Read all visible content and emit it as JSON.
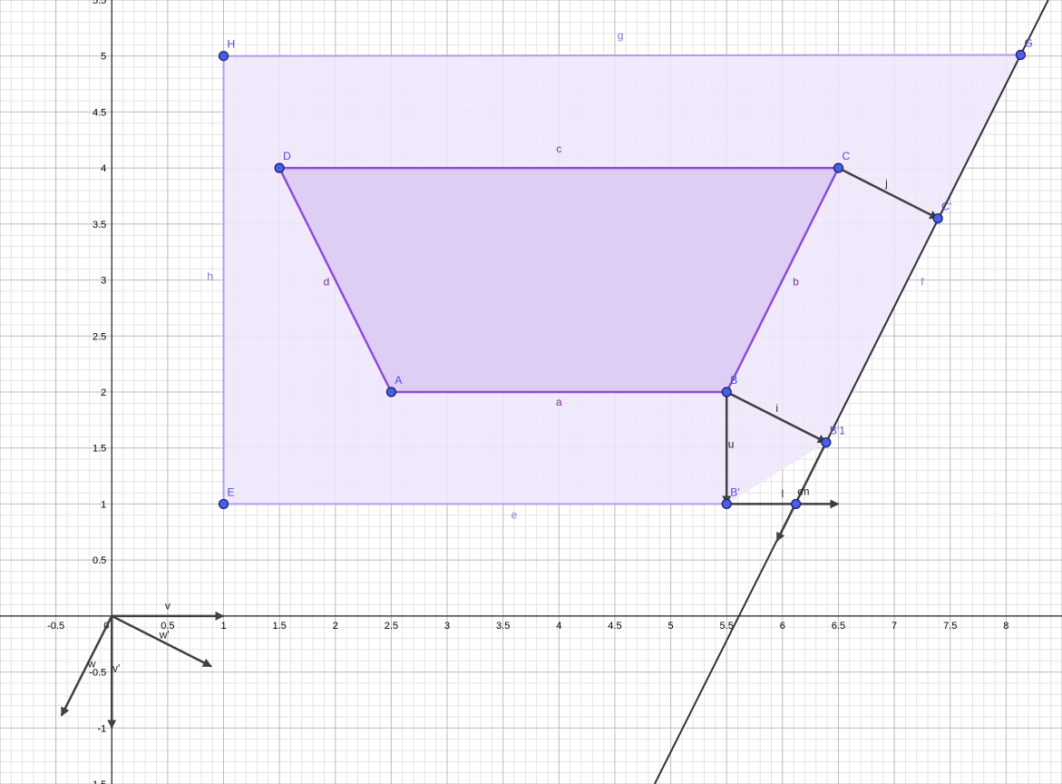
{
  "view": {
    "xmin": -1,
    "xmax": 8.5,
    "ymin": -1.5,
    "ymax": 5.5
  },
  "colors": {
    "outer_fill": "#ede6fb",
    "outer_stroke": "#b59af0",
    "inner_fill": "#dccbf4",
    "inner_stroke": "#8a4fd8",
    "vector": "#404040",
    "point_fill": "#4a5de8",
    "point_stroke": "#1a1a66",
    "grid_major": "#bcbcbc",
    "grid_minor": "#e4e4e4"
  },
  "axes": {
    "x_ticks": [
      {
        "v": -0.5,
        "t": "-0.5"
      },
      {
        "v": 0,
        "t": "0"
      },
      {
        "v": 0.5,
        "t": "0.5"
      },
      {
        "v": 1,
        "t": "1"
      },
      {
        "v": 1.5,
        "t": "1.5"
      },
      {
        "v": 2,
        "t": "2"
      },
      {
        "v": 2.5,
        "t": "2.5"
      },
      {
        "v": 3,
        "t": "3"
      },
      {
        "v": 3.5,
        "t": "3.5"
      },
      {
        "v": 4,
        "t": "4"
      },
      {
        "v": 4.5,
        "t": "4.5"
      },
      {
        "v": 5,
        "t": "5"
      },
      {
        "v": 5.5,
        "t": "5.5"
      },
      {
        "v": 6,
        "t": "6"
      },
      {
        "v": 6.5,
        "t": "6.5"
      },
      {
        "v": 7,
        "t": "7"
      },
      {
        "v": 7.5,
        "t": "7.5"
      },
      {
        "v": 8,
        "t": "8"
      }
    ],
    "y_ticks": [
      {
        "v": -1.5,
        "t": "-1.5"
      },
      {
        "v": -1,
        "t": "-1"
      },
      {
        "v": -0.5,
        "t": "-0.5"
      },
      {
        "v": 0.5,
        "t": "0.5"
      },
      {
        "v": 1,
        "t": "1"
      },
      {
        "v": 1.5,
        "t": "1.5"
      },
      {
        "v": 2,
        "t": "2"
      },
      {
        "v": 2.5,
        "t": "2.5"
      },
      {
        "v": 3,
        "t": "3"
      },
      {
        "v": 3.5,
        "t": "3.5"
      },
      {
        "v": 4,
        "t": "4"
      },
      {
        "v": 4.5,
        "t": "4.5"
      },
      {
        "v": 5,
        "t": "5"
      },
      {
        "v": 5.5,
        "t": "5.5"
      }
    ]
  },
  "points": [
    {
      "id": "A",
      "label": "A",
      "x": 2.5,
      "y": 2
    },
    {
      "id": "B",
      "label": "B",
      "x": 5.5,
      "y": 2
    },
    {
      "id": "C",
      "label": "C",
      "x": 6.5,
      "y": 4
    },
    {
      "id": "D",
      "label": "D",
      "x": 1.5,
      "y": 4
    },
    {
      "id": "E",
      "label": "E",
      "x": 1,
      "y": 1
    },
    {
      "id": "G",
      "label": "G",
      "x": 8.13,
      "y": 5.01
    },
    {
      "id": "H",
      "label": "H",
      "x": 1,
      "y": 5
    },
    {
      "id": "Cp",
      "label": "C'",
      "x": 7.39,
      "y": 3.55
    },
    {
      "id": "B1",
      "label": "B'1",
      "x": 6.39,
      "y": 1.55
    },
    {
      "id": "Bp",
      "label": "B'",
      "x": 5.5,
      "y": 1
    },
    {
      "id": "I",
      "label": "",
      "x": 6.12,
      "y": 1
    }
  ],
  "outer_polygon": {
    "vertices": [
      [
        1,
        5
      ],
      [
        8.13,
        5.01
      ],
      [
        6.39,
        1.55
      ],
      [
        5.5,
        1
      ],
      [
        1,
        1
      ]
    ],
    "segments": [
      {
        "name": "g",
        "from": [
          1,
          5
        ],
        "to": [
          8.13,
          5.01
        ],
        "label": "g",
        "lx": 4.55,
        "ly": 5.15
      },
      {
        "name": "f",
        "from": [
          8.13,
          5.01
        ],
        "to": [
          6.39,
          1.55
        ],
        "label": "f",
        "lx": 7.25,
        "ly": 2.95
      },
      {
        "name": "e",
        "from": [
          5.5,
          1
        ],
        "to": [
          1,
          1
        ],
        "label": "e",
        "lx": 3.6,
        "ly": 0.87
      },
      {
        "name": "h",
        "from": [
          1,
          1
        ],
        "to": [
          1,
          5
        ],
        "label": "h",
        "lx": 0.88,
        "ly": 3.0
      }
    ]
  },
  "inner_polygon": {
    "vertices": [
      [
        2.5,
        2
      ],
      [
        5.5,
        2
      ],
      [
        6.5,
        4
      ],
      [
        1.5,
        4
      ]
    ],
    "segments": [
      {
        "name": "a",
        "from": [
          2.5,
          2
        ],
        "to": [
          5.5,
          2
        ],
        "label": "a",
        "lx": 4.0,
        "ly": 1.88
      },
      {
        "name": "b",
        "from": [
          5.5,
          2
        ],
        "to": [
          6.5,
          4
        ],
        "label": "b",
        "lx": 6.12,
        "ly": 2.95
      },
      {
        "name": "c",
        "from": [
          6.5,
          4
        ],
        "to": [
          1.5,
          4
        ],
        "label": "c",
        "lx": 4.0,
        "ly": 4.14
      },
      {
        "name": "d",
        "from": [
          1.5,
          4
        ],
        "to": [
          2.5,
          2
        ],
        "label": "d",
        "lx": 1.92,
        "ly": 2.95
      }
    ]
  },
  "vectors": [
    {
      "name": "v",
      "label": "v",
      "from": [
        0,
        0
      ],
      "to": [
        1,
        0
      ],
      "lx": 0.5,
      "ly": 0.06
    },
    {
      "name": "w'",
      "label": "w'",
      "from": [
        0,
        0
      ],
      "to": [
        0.89,
        -0.45
      ],
      "lx": 0.47,
      "ly": -0.2
    },
    {
      "name": "w",
      "label": "w",
      "from": [
        0,
        0
      ],
      "to": [
        -0.45,
        -0.89
      ],
      "lx": -0.18,
      "ly": -0.46
    },
    {
      "name": "v'",
      "label": "v'",
      "from": [
        0,
        0
      ],
      "to": [
        0,
        -1
      ],
      "lx": 0.04,
      "ly": -0.5
    },
    {
      "name": "u",
      "label": "u",
      "from": [
        5.5,
        2
      ],
      "to": [
        5.5,
        1
      ],
      "lx": 5.54,
      "ly": 1.5
    },
    {
      "name": "i",
      "label": "i",
      "from": [
        5.5,
        2
      ],
      "to": [
        6.39,
        1.55
      ],
      "lx": 5.95,
      "ly": 1.82
    },
    {
      "name": "j",
      "label": "j",
      "from": [
        6.5,
        4
      ],
      "to": [
        7.39,
        3.55
      ],
      "lx": 6.93,
      "ly": 3.83
    },
    {
      "name": "l",
      "label": "l",
      "from": [
        5.5,
        1
      ],
      "to": [
        6.5,
        1
      ],
      "lx": 6.0,
      "ly": 1.06
    },
    {
      "name": "m",
      "label": "m",
      "from": [
        6.39,
        1.55
      ],
      "to": [
        5.95,
        0.67
      ],
      "lx": 6.2,
      "ly": 1.08
    }
  ],
  "line": {
    "name": "line-through-b1-g",
    "p1": [
      6.39,
      1.55
    ],
    "p2": [
      8.13,
      5.01
    ]
  },
  "extra_labels": [
    {
      "name": "label-e-near-i",
      "text": "e",
      "x": 6.16,
      "y": 1.08
    }
  ]
}
